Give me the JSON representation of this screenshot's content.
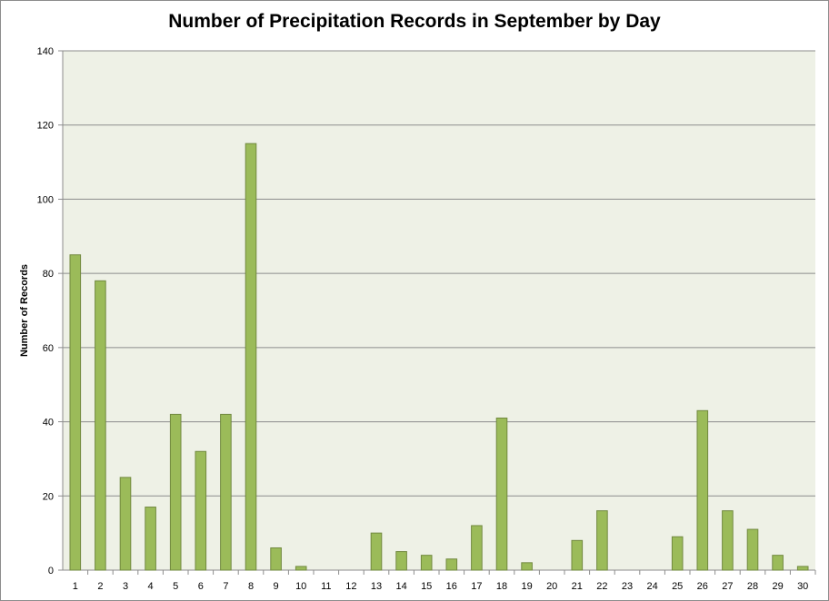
{
  "chart_data": {
    "type": "bar",
    "title": "Number of Precipitation Records in September by Day",
    "xlabel": "",
    "ylabel": "Number of Records",
    "ylim": [
      0,
      140
    ],
    "yticks": [
      0,
      20,
      40,
      60,
      80,
      100,
      120,
      140
    ],
    "grid": true,
    "legend": "none",
    "categories": [
      "1",
      "2",
      "3",
      "4",
      "5",
      "6",
      "7",
      "8",
      "9",
      "10",
      "11",
      "12",
      "13",
      "14",
      "15",
      "16",
      "17",
      "18",
      "19",
      "20",
      "21",
      "22",
      "23",
      "24",
      "25",
      "26",
      "27",
      "28",
      "29",
      "30"
    ],
    "values": [
      85,
      78,
      25,
      17,
      42,
      32,
      42,
      115,
      6,
      1,
      0,
      0,
      10,
      5,
      4,
      3,
      12,
      41,
      2,
      0,
      8,
      16,
      0,
      0,
      9,
      43,
      16,
      11,
      4,
      1
    ]
  },
  "colors": {
    "bar_fill": "#9bbb59",
    "bar_stroke": "#71893f",
    "plot_background": "#eef1e6",
    "gridline": "#8c8c8c"
  }
}
